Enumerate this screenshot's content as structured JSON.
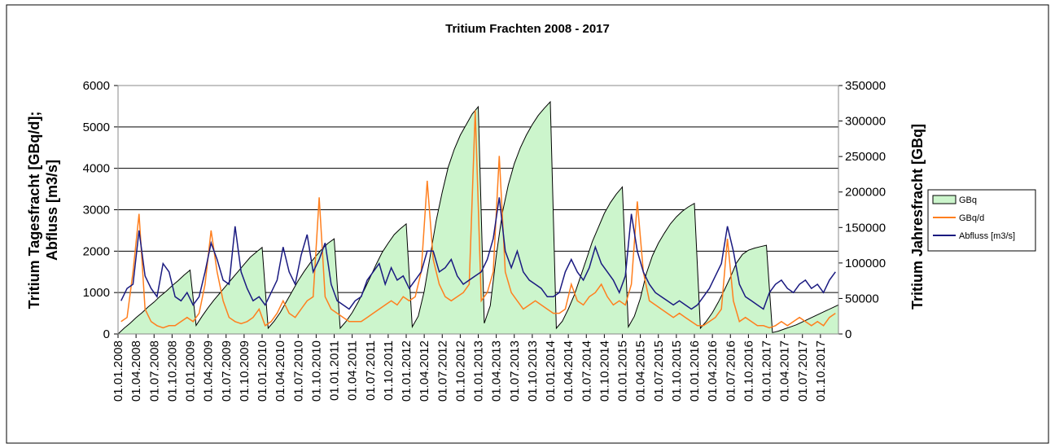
{
  "chart_data": {
    "type": "area-line",
    "title": "Tritium Frachten 2008 - 2017",
    "ylabel": [
      "Tritium Tagesfracht [GBq/d];",
      "Abfluss  [m3/s]"
    ],
    "y2label": "Tritium Jahresfracht [GBq]",
    "categories": [
      "01.01.2008",
      null,
      null,
      "01.04.2008",
      null,
      null,
      "01.07.2008",
      null,
      null,
      "01.10.2008",
      null,
      null,
      "01.01.2009",
      null,
      null,
      "01.04.2009",
      null,
      null,
      "01.07.2009",
      null,
      null,
      "01.10.2009",
      null,
      null,
      "01.01.2010",
      null,
      null,
      "01.04.2010",
      null,
      null,
      "01.07.2010",
      null,
      null,
      "01.10.2010",
      null,
      null,
      "01.01.2011",
      null,
      null,
      "01.04.2011",
      null,
      null,
      "01.07.2011",
      null,
      null,
      "01.10.2011",
      null,
      null,
      "01.01.2012",
      null,
      null,
      "01.04.2012",
      null,
      null,
      "01.07.2012",
      null,
      null,
      "01.10.2012",
      null,
      null,
      "01.01.2013",
      null,
      null,
      "01.04.2013",
      null,
      null,
      "01.07.2013",
      null,
      null,
      "01.10.2013",
      null,
      null,
      "01.01.2014",
      null,
      null,
      "01.04.2014",
      null,
      null,
      "01.07.2014",
      null,
      null,
      "01.10.2014",
      null,
      null,
      "01.01.2015",
      null,
      null,
      "01.04.2015",
      null,
      null,
      "01.07.2015",
      null,
      null,
      "01.10.2015",
      null,
      null,
      "01.01.2016",
      null,
      null,
      "01.04.2016",
      null,
      null,
      "01.07.2016",
      null,
      null,
      "01.10.2016",
      null,
      null,
      "01.01.2017",
      null,
      null,
      "01.04.2017",
      null,
      null,
      "01.07.2017",
      null,
      null,
      "01.10.2017",
      null,
      null
    ],
    "ylim": [
      0,
      6000
    ],
    "yticks": [
      0,
      1000,
      2000,
      3000,
      4000,
      5000,
      6000
    ],
    "y2lim": [
      0,
      350000
    ],
    "y2ticks": [
      0,
      50000,
      100000,
      150000,
      200000,
      250000,
      300000,
      350000
    ],
    "grid": true,
    "legend": "right",
    "series": [
      {
        "name": "GBq",
        "kind": "area",
        "axis": "y2",
        "color": "#ccf5cc",
        "values": [
          8000,
          15000,
          23000,
          30000,
          38000,
          45000,
          53000,
          60000,
          68000,
          75000,
          83000,
          90000,
          12000,
          25000,
          37000,
          48000,
          58000,
          68000,
          78000,
          88000,
          98000,
          108000,
          115000,
          122000,
          8000,
          18000,
          30000,
          45000,
          60000,
          75000,
          88000,
          100000,
          110000,
          120000,
          128000,
          134000,
          8000,
          18000,
          30000,
          45000,
          62000,
          80000,
          98000,
          115000,
          128000,
          140000,
          148000,
          155000,
          10000,
          25000,
          60000,
          110000,
          160000,
          200000,
          235000,
          260000,
          280000,
          295000,
          310000,
          320000,
          15000,
          40000,
          110000,
          170000,
          210000,
          240000,
          262000,
          280000,
          295000,
          308000,
          318000,
          327000,
          8000,
          18000,
          35000,
          55000,
          80000,
          105000,
          130000,
          150000,
          170000,
          185000,
          197000,
          207000,
          10000,
          25000,
          50000,
          85000,
          110000,
          128000,
          142000,
          155000,
          165000,
          173000,
          179000,
          184000,
          8000,
          18000,
          30000,
          45000,
          62000,
          80000,
          100000,
          112000,
          118000,
          121000,
          123000,
          125000,
          2000,
          4000,
          7000,
          10000,
          13000,
          17000,
          21000,
          25000,
          29000,
          33000,
          37000,
          41000
        ]
      },
      {
        "name": "GBq/d",
        "kind": "line",
        "color": "#ff7f1e",
        "values": [
          300,
          400,
          1500,
          2900,
          600,
          300,
          200,
          150,
          200,
          200,
          300,
          400,
          300,
          500,
          1200,
          2500,
          1500,
          800,
          400,
          300,
          250,
          300,
          400,
          600,
          200,
          300,
          500,
          800,
          500,
          400,
          600,
          800,
          900,
          3300,
          900,
          600,
          500,
          400,
          300,
          300,
          300,
          400,
          500,
          600,
          700,
          800,
          700,
          900,
          800,
          900,
          1500,
          3700,
          1800,
          1200,
          900,
          800,
          900,
          1000,
          1200,
          5400,
          800,
          1000,
          1500,
          4300,
          1500,
          1000,
          800,
          600,
          700,
          800,
          700,
          600,
          500,
          500,
          600,
          1200,
          800,
          700,
          900,
          1000,
          1200,
          900,
          700,
          800,
          700,
          1200,
          3200,
          1500,
          800,
          700,
          600,
          500,
          400,
          500,
          400,
          300,
          200,
          200,
          300,
          400,
          600,
          2300,
          800,
          300,
          400,
          300,
          200,
          200,
          150,
          200,
          300,
          200,
          300,
          400,
          300,
          200,
          300,
          200,
          400,
          500
        ]
      },
      {
        "name": "Abfluss [m3/s]",
        "kind": "line",
        "color": "#1a1a80",
        "values": [
          800,
          1100,
          1200,
          2500,
          1400,
          1100,
          900,
          1700,
          1500,
          900,
          800,
          1000,
          700,
          900,
          1500,
          2200,
          1800,
          1300,
          1200,
          2600,
          1500,
          1100,
          800,
          900,
          700,
          1000,
          1300,
          2100,
          1500,
          1200,
          1900,
          2400,
          1500,
          1800,
          2200,
          1200,
          800,
          700,
          600,
          800,
          900,
          1300,
          1500,
          1700,
          1200,
          1600,
          1300,
          1400,
          1100,
          1300,
          1500,
          2000,
          2000,
          1500,
          1600,
          1800,
          1400,
          1200,
          1300,
          1400,
          1500,
          1800,
          2300,
          3300,
          2000,
          1600,
          2000,
          1500,
          1300,
          1200,
          1100,
          900,
          900,
          1000,
          1500,
          1800,
          1500,
          1300,
          1600,
          2100,
          1700,
          1500,
          1300,
          1000,
          1400,
          2900,
          2000,
          1500,
          1200,
          1000,
          900,
          800,
          700,
          800,
          700,
          600,
          700,
          900,
          1100,
          1400,
          1700,
          2600,
          2000,
          1200,
          900,
          800,
          700,
          600,
          1000,
          1200,
          1300,
          1100,
          1000,
          1200,
          1300,
          1100,
          1200,
          1000,
          1300,
          1500
        ]
      }
    ]
  }
}
